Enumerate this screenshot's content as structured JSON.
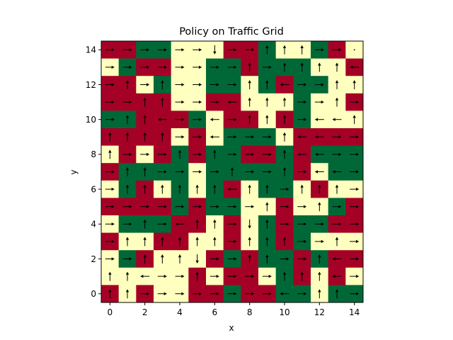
{
  "chart_data": {
    "type": "heatmap",
    "title": "Policy on Traffic Grid",
    "xlabel": "x",
    "ylabel": "y",
    "xlim": [
      -0.5,
      14.5
    ],
    "ylim": [
      -0.5,
      14.5
    ],
    "x_ticks": [
      0,
      2,
      4,
      6,
      8,
      10,
      12,
      14
    ],
    "y_ticks": [
      0,
      2,
      4,
      6,
      8,
      10,
      12,
      14
    ],
    "x_tick_labels": [
      "0",
      "2",
      "4",
      "6",
      "8",
      "10",
      "12",
      "14"
    ],
    "y_tick_labels": [
      "0",
      "2",
      "4",
      "6",
      "8",
      "10",
      "12",
      "14"
    ],
    "colors": {
      "R": "#a50026",
      "G": "#006837",
      "Y": "#ffffbf"
    },
    "grid_rows_top_to_bottom": [
      "RRGGYYYRRGYYGRY",
      "YGRRYYGGRGGGYYR",
      "RRYGYYGGYGRGGYY",
      "RRRRYYRRYYYGYYR",
      "GGRRRGYRRYRGYYY",
      "RRRRYRYGGGYRRRR",
      "YRYRGRGGRRGRGGG",
      "RGGGGYGGGGGRYGG",
      "YGRYGYGRYGGYRYY",
      "RRRRGRGGYYRYYGR",
      "YGGGRRYRYGRGGRR",
      "RYYRRYYRYGRGYYY",
      "YGRYYYRGRGGRGRR",
      "YYYYYRYRRYGRYRY",
      "RYRYYRRGRRGGYGG"
    ],
    "actions_rows_top_to_bottom": [
      "RRRRRRDRRUUURR.",
      "RRRRRRRRURUUUUL",
      "RURURRRRUULRRUU",
      "RRUURRRLUUURRUR",
      "RUULRRLRUUURLLU",
      "UUUURRLRRRULLRR",
      "URRRURURRRULLRR",
      "RUURRRRURRURLLR",
      "RUUUUUULUURUUUR",
      "RRRRRRRRRURRURR",
      "RRURLUURDURRRRR",
      "RUUUUUURUUURRUR",
      "RRUUUDRRUURRULR",
      "UULRRURRRRUUULR",
      "UURRRRRRRRLRUUR"
    ]
  }
}
